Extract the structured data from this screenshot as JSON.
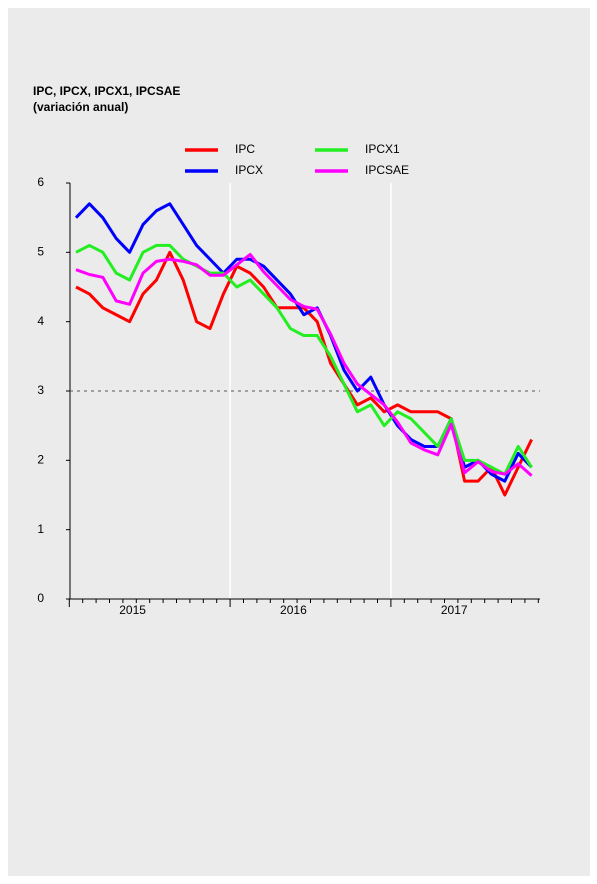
{
  "chart_data": {
    "type": "line",
    "title": "IPC, IPCX, IPCX1, IPCSAE",
    "subtitle": "(variación anual)",
    "categories": [
      null,
      null,
      null,
      null,
      "2015",
      null,
      null,
      null,
      null,
      null,
      null,
      null,
      null,
      null,
      null,
      null,
      "2016",
      null,
      null,
      null,
      null,
      null,
      null,
      null,
      null,
      null,
      null,
      null,
      "2017",
      null,
      null,
      null,
      null,
      null,
      null
    ],
    "series": [
      {
        "name": "IPC",
        "color": "#ff0000",
        "values": [
          4.5,
          4.4,
          4.2,
          4.1,
          4.0,
          4.4,
          4.6,
          5.0,
          4.6,
          4.0,
          3.9,
          4.4,
          4.8,
          4.7,
          4.5,
          4.2,
          4.2,
          4.2,
          4.0,
          3.4,
          3.1,
          2.8,
          2.9,
          2.7,
          2.8,
          2.7,
          2.7,
          2.7,
          2.6,
          1.7,
          1.7,
          1.9,
          1.5,
          1.9,
          2.3
        ]
      },
      {
        "name": "IPCX",
        "color": "#0000ff",
        "values": [
          5.5,
          5.7,
          5.5,
          5.2,
          5.0,
          5.4,
          5.6,
          5.7,
          5.4,
          5.1,
          4.9,
          4.7,
          4.9,
          4.9,
          4.8,
          4.6,
          4.4,
          4.1,
          4.2,
          3.8,
          3.3,
          3.0,
          3.2,
          2.8,
          2.5,
          2.3,
          2.2,
          2.2,
          2.6,
          1.9,
          2.0,
          1.8,
          1.7,
          2.1,
          1.9
        ]
      },
      {
        "name": "IPCX1",
        "color": "#22ee22",
        "values": [
          5.0,
          5.1,
          5.0,
          4.7,
          4.6,
          5.0,
          5.1,
          5.1,
          4.9,
          4.8,
          4.7,
          4.7,
          4.5,
          4.6,
          4.4,
          4.2,
          3.9,
          3.8,
          3.8,
          3.5,
          3.1,
          2.7,
          2.8,
          2.5,
          2.7,
          2.6,
          2.4,
          2.2,
          2.6,
          2.0,
          2.0,
          1.9,
          1.8,
          2.2,
          1.9
        ]
      },
      {
        "name": "IPCSAE",
        "color": "#ff00ff",
        "values": [
          4.75,
          4.68,
          4.64,
          4.3,
          4.25,
          4.7,
          4.87,
          4.9,
          4.87,
          4.82,
          4.67,
          4.67,
          4.82,
          4.97,
          4.72,
          4.52,
          4.32,
          4.22,
          4.18,
          3.82,
          3.4,
          3.1,
          2.95,
          2.8,
          2.55,
          2.25,
          2.15,
          2.08,
          2.52,
          1.82,
          1.98,
          1.84,
          1.8,
          1.95,
          1.78
        ]
      }
    ],
    "ylim": [
      0,
      6
    ],
    "yticks": [
      0,
      1,
      2,
      3,
      4,
      5,
      6
    ],
    "reference_line": 3,
    "legend": "top"
  }
}
